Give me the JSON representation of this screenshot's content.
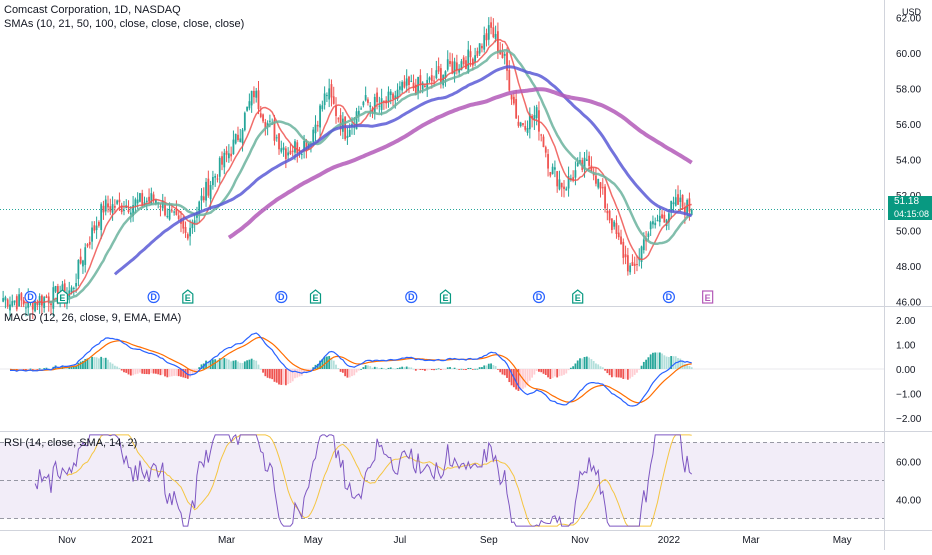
{
  "header": {
    "symbol_line": "Comcast Corporation, 1D, NASDAQ",
    "sma_line": "SMAs (10, 21, 50, 100, close, close, close, close)",
    "currency": "USD"
  },
  "macd_legend": "MACD (12, 26, close, 9, EMA, EMA)",
  "rsi_legend": "RSI (14, close, SMA, 14, 2)",
  "price_tag": {
    "value": "51.18",
    "countdown": "04:15:08",
    "color": "#089981"
  },
  "colors": {
    "up": "#26a69a",
    "down": "#ef5350",
    "sma10": "#ef5350",
    "sma21": "#6bb39d",
    "sma50": "#5b5bd6",
    "sma100": "#b35ab8",
    "macd": "#2962ff",
    "signal": "#ff6d00",
    "rsi": "#7e57c2",
    "rsi_ma": "#f5c542",
    "dividend": "#2962ff",
    "earnings": "#089981",
    "future_earnings": "#b35ab8"
  },
  "x_axis": {
    "ticks": [
      {
        "label": "Nov",
        "bar": 28
      },
      {
        "label": "2021",
        "bar": 61
      },
      {
        "label": "Mar",
        "bar": 98
      },
      {
        "label": "May",
        "bar": 136
      },
      {
        "label": "Jul",
        "bar": 174
      },
      {
        "label": "Sep",
        "bar": 213
      },
      {
        "label": "Nov",
        "bar": 253
      },
      {
        "label": "2022",
        "bar": 292
      },
      {
        "label": "Mar",
        "bar": 328
      },
      {
        "label": "May",
        "bar": 368
      }
    ]
  },
  "price_axis": {
    "ticks": [
      "62.00",
      "60.00",
      "58.00",
      "56.00",
      "54.00",
      "52.00",
      "50.00",
      "48.00",
      "46.00"
    ]
  },
  "macd_axis": {
    "ticks": [
      "2.00",
      "1.00",
      "0.00",
      "−1.00",
      "−2.00"
    ]
  },
  "rsi_axis": {
    "ticks": [
      "60.00",
      "40.00"
    ]
  },
  "events": {
    "dividends": [
      12,
      66,
      122,
      179,
      235,
      292
    ],
    "earnings": [
      26,
      81,
      137,
      194,
      252
    ],
    "future_earnings": [
      309
    ],
    "dividend_symbol": "D",
    "earnings_symbol": "E"
  },
  "chart_data": [
    {
      "type": "candlestick",
      "title": "Comcast Corporation, 1D, NASDAQ",
      "ylim": [
        45.8,
        62.3
      ],
      "current_price": 51.18,
      "anchors": [
        {
          "bar": 0,
          "price": 46.2
        },
        {
          "bar": 10,
          "price": 45.9
        },
        {
          "bar": 30,
          "price": 46.6
        },
        {
          "bar": 36,
          "price": 49.0
        },
        {
          "bar": 44,
          "price": 51.3
        },
        {
          "bar": 56,
          "price": 51.5
        },
        {
          "bar": 68,
          "price": 51.8
        },
        {
          "bar": 74,
          "price": 50.7
        },
        {
          "bar": 80,
          "price": 49.8
        },
        {
          "bar": 90,
          "price": 52.5
        },
        {
          "bar": 102,
          "price": 55.0
        },
        {
          "bar": 110,
          "price": 57.8
        },
        {
          "bar": 116,
          "price": 56.0
        },
        {
          "bar": 124,
          "price": 54.5
        },
        {
          "bar": 134,
          "price": 55.0
        },
        {
          "bar": 142,
          "price": 57.8
        },
        {
          "bar": 150,
          "price": 55.6
        },
        {
          "bar": 158,
          "price": 57.2
        },
        {
          "bar": 166,
          "price": 57.0
        },
        {
          "bar": 176,
          "price": 58.0
        },
        {
          "bar": 186,
          "price": 58.2
        },
        {
          "bar": 196,
          "price": 59.2
        },
        {
          "bar": 206,
          "price": 59.8
        },
        {
          "bar": 214,
          "price": 61.3
        },
        {
          "bar": 220,
          "price": 59.5
        },
        {
          "bar": 226,
          "price": 56.0
        },
        {
          "bar": 234,
          "price": 56.5
        },
        {
          "bar": 240,
          "price": 53.5
        },
        {
          "bar": 246,
          "price": 52.5
        },
        {
          "bar": 252,
          "price": 53.4
        },
        {
          "bar": 258,
          "price": 53.8
        },
        {
          "bar": 264,
          "price": 51.5
        },
        {
          "bar": 270,
          "price": 49.3
        },
        {
          "bar": 276,
          "price": 47.5
        },
        {
          "bar": 282,
          "price": 49.8
        },
        {
          "bar": 288,
          "price": 50.7
        },
        {
          "bar": 296,
          "price": 51.5
        },
        {
          "bar": 302,
          "price": 51.18
        }
      ],
      "series": [
        {
          "name": "SMA 10",
          "period": 10
        },
        {
          "name": "SMA 21",
          "period": 21
        },
        {
          "name": "SMA 50",
          "period": 50
        },
        {
          "name": "SMA 100",
          "period": 100
        }
      ]
    },
    {
      "type": "macd",
      "title": "MACD (12, 26, close, 9, EMA, EMA)",
      "ylim": [
        -2.5,
        2.5
      ],
      "params": {
        "fast": 12,
        "slow": 26,
        "signal": 9
      }
    },
    {
      "type": "line",
      "title": "RSI (14, close, SMA, 14, 2)",
      "ylim": [
        25,
        75
      ],
      "bands": [
        70,
        50,
        30
      ],
      "params": {
        "length": 14,
        "ma_length": 14
      }
    }
  ]
}
